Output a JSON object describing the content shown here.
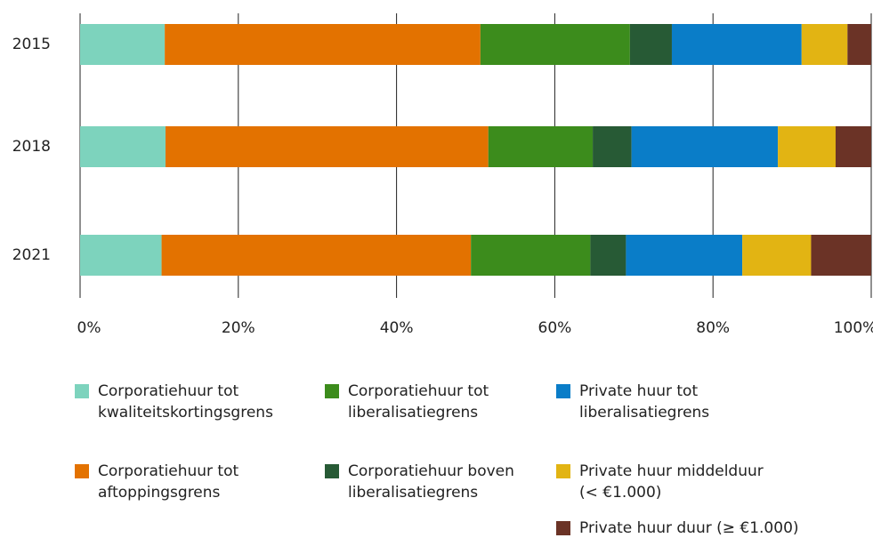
{
  "chart_data": {
    "type": "stacked_barh",
    "categories": [
      "2015",
      "2018",
      "2021"
    ],
    "series": [
      {
        "name": "Corporatiehuur tot\nkwaliteitskortingsgrens",
        "color": "#7dd3bd",
        "values": [
          10.7,
          10.8,
          10.3
        ]
      },
      {
        "name": "Corporatiehuur tot\naftoppingsgrens",
        "color": "#e37200",
        "values": [
          39.9,
          40.8,
          39.1
        ]
      },
      {
        "name": "Corporatiehuur tot\nliberalisatiegrens",
        "color": "#3c8c1c",
        "values": [
          18.9,
          13.2,
          15.1
        ]
      },
      {
        "name": "Corporatiehuur boven\nliberalisatiegrens",
        "color": "#275a35",
        "values": [
          5.3,
          4.9,
          4.5
        ]
      },
      {
        "name": "Private huur tot\nliberalisatiegrens",
        "color": "#0a7dc8",
        "values": [
          16.4,
          18.5,
          14.7
        ]
      },
      {
        "name": "Private huur middelduur\n(< €1.000)",
        "color": "#e2b413",
        "values": [
          5.8,
          7.3,
          8.7
        ]
      },
      {
        "name": "Private huur duur (≥ €1.000)",
        "color": "#6b3326",
        "values": [
          3.0,
          4.5,
          7.6
        ]
      }
    ],
    "xlim": [
      0,
      100
    ],
    "xticks": [
      {
        "value": 0,
        "label": "0%"
      },
      {
        "value": 20,
        "label": "20%"
      },
      {
        "value": 40,
        "label": "40%"
      },
      {
        "value": 60,
        "label": "60%"
      },
      {
        "value": 80,
        "label": "80%"
      },
      {
        "value": 100,
        "label": "100%"
      }
    ],
    "grid": true
  }
}
